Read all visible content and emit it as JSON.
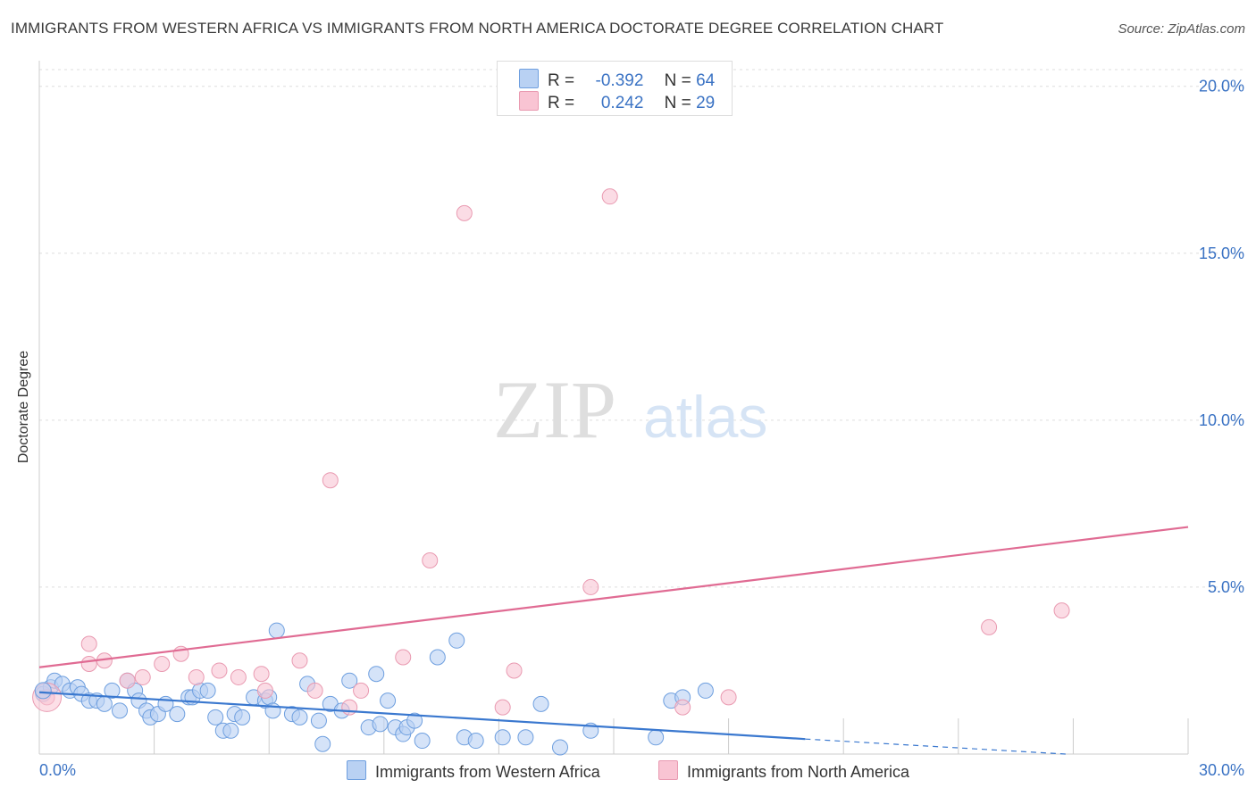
{
  "header": {
    "title": "IMMIGRANTS FROM WESTERN AFRICA VS IMMIGRANTS FROM NORTH AMERICA DOCTORATE DEGREE CORRELATION CHART",
    "source": "Source: ZipAtlas.com"
  },
  "watermark": {
    "zip": "ZIP",
    "atlas": "atlas"
  },
  "legend": {
    "r_label": "R =",
    "n_label": "N =",
    "rows": [
      {
        "r": "-0.392",
        "n": "64",
        "fill": "#b9d1f3",
        "stroke": "#6e9fdf"
      },
      {
        "r": "0.242",
        "n": "29",
        "fill": "#f9c4d3",
        "stroke": "#e99ab1"
      }
    ]
  },
  "colors": {
    "blue": "#3a78cf",
    "pink": "#e06b93",
    "grid": "#dddddd",
    "tick": "#3b73c4"
  },
  "chart_data": {
    "type": "scatter",
    "title": "IMMIGRANTS FROM WESTERN AFRICA VS IMMIGRANTS FROM NORTH AMERICA DOCTORATE DEGREE CORRELATION CHART",
    "xlabel": "",
    "ylabel": "Doctorate Degree",
    "xlim": [
      0,
      30
    ],
    "ylim": [
      0,
      20.5
    ],
    "x_tick_labels": [
      "0.0%",
      "30.0%"
    ],
    "y_ticks": [
      5,
      10,
      15,
      20
    ],
    "y_tick_labels": [
      "5.0%",
      "10.0%",
      "15.0%",
      "20.0%"
    ],
    "grid": true,
    "series": [
      {
        "name": "Immigrants from Western Africa",
        "r": -0.392,
        "n": 64,
        "trend": {
          "x0": 0,
          "y0": 1.85,
          "x1": 20,
          "y1": 0.45,
          "dash_x1": 26.8,
          "dash_y1": 0.0
        },
        "points": [
          [
            0.1,
            1.8
          ],
          [
            0.3,
            2.0
          ],
          [
            0.4,
            2.2
          ],
          [
            0.6,
            2.1
          ],
          [
            0.8,
            1.9
          ],
          [
            1.0,
            2.0
          ],
          [
            1.1,
            1.8
          ],
          [
            1.3,
            1.6
          ],
          [
            1.5,
            1.6
          ],
          [
            1.7,
            1.5
          ],
          [
            1.9,
            1.9
          ],
          [
            2.1,
            1.3
          ],
          [
            2.3,
            2.2
          ],
          [
            2.5,
            1.9
          ],
          [
            2.6,
            1.6
          ],
          [
            2.8,
            1.3
          ],
          [
            2.9,
            1.1
          ],
          [
            3.1,
            1.2
          ],
          [
            3.3,
            1.5
          ],
          [
            3.6,
            1.2
          ],
          [
            3.9,
            1.7
          ],
          [
            4.0,
            1.7
          ],
          [
            4.2,
            1.9
          ],
          [
            4.4,
            1.9
          ],
          [
            4.6,
            1.1
          ],
          [
            4.8,
            0.7
          ],
          [
            5.0,
            0.7
          ],
          [
            5.1,
            1.2
          ],
          [
            5.3,
            1.1
          ],
          [
            5.6,
            1.7
          ],
          [
            5.9,
            1.6
          ],
          [
            6.0,
            1.7
          ],
          [
            6.1,
            1.3
          ],
          [
            6.2,
            3.7
          ],
          [
            6.6,
            1.2
          ],
          [
            6.8,
            1.1
          ],
          [
            7.0,
            2.1
          ],
          [
            7.3,
            1.0
          ],
          [
            7.4,
            0.3
          ],
          [
            7.6,
            1.5
          ],
          [
            7.9,
            1.3
          ],
          [
            8.1,
            2.2
          ],
          [
            8.6,
            0.8
          ],
          [
            8.8,
            2.4
          ],
          [
            8.9,
            0.9
          ],
          [
            9.1,
            1.6
          ],
          [
            9.3,
            0.8
          ],
          [
            9.5,
            0.6
          ],
          [
            9.6,
            0.8
          ],
          [
            9.8,
            1.0
          ],
          [
            10.0,
            0.4
          ],
          [
            10.4,
            2.9
          ],
          [
            10.9,
            3.4
          ],
          [
            11.1,
            0.5
          ],
          [
            11.4,
            0.4
          ],
          [
            12.1,
            0.5
          ],
          [
            12.7,
            0.5
          ],
          [
            13.1,
            1.5
          ],
          [
            13.6,
            0.2
          ],
          [
            14.4,
            0.7
          ],
          [
            16.1,
            0.5
          ],
          [
            16.5,
            1.6
          ],
          [
            16.8,
            1.7
          ],
          [
            17.4,
            1.9
          ]
        ]
      },
      {
        "name": "Immigrants from North America",
        "r": 0.242,
        "n": 29,
        "trend": {
          "x0": 0,
          "y0": 2.6,
          "x1": 30,
          "y1": 6.8
        },
        "points": [
          [
            0.2,
            1.7
          ],
          [
            1.3,
            2.7
          ],
          [
            1.3,
            3.3
          ],
          [
            1.7,
            2.8
          ],
          [
            2.3,
            2.2
          ],
          [
            2.7,
            2.3
          ],
          [
            3.2,
            2.7
          ],
          [
            3.7,
            3.0
          ],
          [
            4.1,
            2.3
          ],
          [
            4.7,
            2.5
          ],
          [
            5.2,
            2.3
          ],
          [
            5.8,
            2.4
          ],
          [
            5.9,
            1.9
          ],
          [
            6.8,
            2.8
          ],
          [
            7.2,
            1.9
          ],
          [
            7.6,
            8.2
          ],
          [
            8.1,
            1.4
          ],
          [
            8.4,
            1.9
          ],
          [
            9.5,
            2.9
          ],
          [
            10.2,
            5.8
          ],
          [
            11.1,
            16.2
          ],
          [
            12.1,
            1.4
          ],
          [
            12.4,
            2.5
          ],
          [
            14.4,
            5.0
          ],
          [
            14.9,
            16.7
          ],
          [
            16.8,
            1.4
          ],
          [
            18.0,
            1.7
          ],
          [
            24.8,
            3.8
          ],
          [
            26.7,
            4.3
          ]
        ]
      }
    ]
  }
}
